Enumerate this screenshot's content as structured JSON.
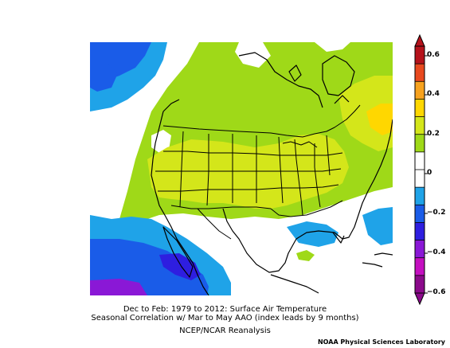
{
  "caption": {
    "line1": "Dec to Feb: 1979 to 2012: Surface Air Temperature",
    "line2": "Seasonal Correlation w/ Mar to May AAO (index leads by 9 months)",
    "line3": "NCEP/NCAR Reanalysis"
  },
  "credit": "NOAA Physical Sciences Laboratory",
  "colorbar": {
    "ticks": [
      "0.6",
      "0.4",
      "0.2",
      "0",
      "−0.2",
      "−0.4",
      "−0.6"
    ],
    "bins": [
      {
        "range": "0.6+",
        "color": "#b5121b"
      },
      {
        "range": "0.5 to 0.6",
        "color": "#e8491e"
      },
      {
        "range": "0.4 to 0.5",
        "color": "#f7a21e"
      },
      {
        "range": "0.3 to 0.4",
        "color": "#ffd700"
      },
      {
        "range": "0.2 to 0.3",
        "color": "#d4e61a"
      },
      {
        "range": "0.1 to 0.2",
        "color": "#9fd918"
      },
      {
        "range": "0 to 0.1",
        "color": "#ffffff"
      },
      {
        "range": "-0.1 to 0",
        "color": "#ffffff"
      },
      {
        "range": "-0.2 to -0.1",
        "color": "#1fa3e8"
      },
      {
        "range": "-0.3 to -0.2",
        "color": "#1a5ce8"
      },
      {
        "range": "-0.4 to -0.3",
        "color": "#2e1ee0"
      },
      {
        "range": "-0.5 to -0.4",
        "color": "#8a18d6"
      },
      {
        "range": "-0.6 to -0.5",
        "color": "#c40fc0"
      },
      {
        "range": "below -0.6",
        "color": "#8b0a8b"
      }
    ]
  },
  "colors": {
    "green_light": "#9fd918",
    "yellow_green": "#d4e61a",
    "yellow": "#ffd700",
    "light_blue": "#1fa3e8",
    "blue": "#1a5ce8",
    "deep_blue": "#2e1ee0",
    "violet": "#8a18d6"
  }
}
